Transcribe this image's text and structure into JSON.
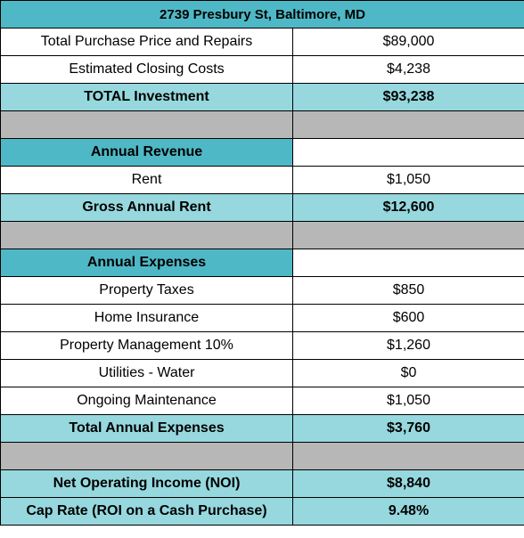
{
  "title": "2739 Presbury St, Baltimore, MD",
  "rows": [
    {
      "type": "white",
      "label": "Total Purchase Price and Repairs",
      "value": "$89,000"
    },
    {
      "type": "white",
      "label": "Estimated Closing Costs",
      "value": "$4,238"
    },
    {
      "type": "total",
      "label": "TOTAL Investment",
      "value": "$93,238"
    },
    {
      "type": "gray",
      "label": "",
      "value": ""
    },
    {
      "type": "section",
      "label": "Annual Revenue",
      "value": ""
    },
    {
      "type": "white",
      "label": "Rent",
      "value": "$1,050"
    },
    {
      "type": "total",
      "label": "Gross Annual Rent",
      "value": "$12,600"
    },
    {
      "type": "gray",
      "label": "",
      "value": ""
    },
    {
      "type": "section",
      "label": "Annual Expenses",
      "value": ""
    },
    {
      "type": "white",
      "label": "Property Taxes",
      "value": "$850"
    },
    {
      "type": "white",
      "label": "Home Insurance",
      "value": "$600"
    },
    {
      "type": "white",
      "label": "Property Management 10%",
      "value": "$1,260"
    },
    {
      "type": "white",
      "label": "Utilities - Water",
      "value": "$0"
    },
    {
      "type": "white",
      "label": "Ongoing Maintenance",
      "value": "$1,050"
    },
    {
      "type": "total",
      "label": "Total Annual Expenses",
      "value": "$3,760"
    },
    {
      "type": "gray",
      "label": "",
      "value": ""
    },
    {
      "type": "total",
      "label": "Net Operating Income (NOI)",
      "value": "$8,840"
    },
    {
      "type": "total",
      "label": "Cap Rate (ROI on a Cash Purchase)",
      "value": "9.48%"
    }
  ]
}
